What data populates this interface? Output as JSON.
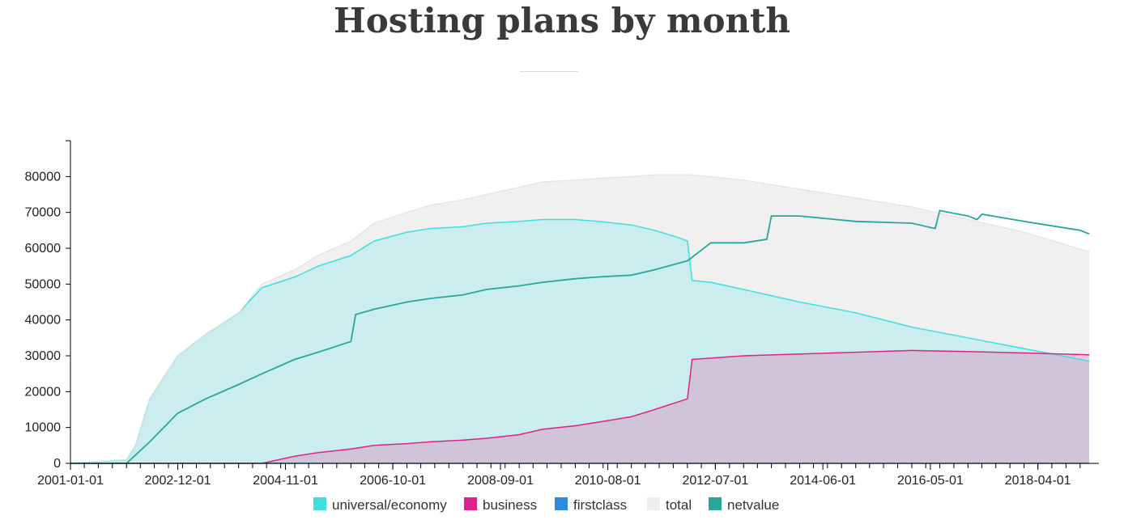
{
  "page": {
    "title": "Hosting plans by month"
  },
  "chart_data": {
    "type": "area",
    "title": "Hosting plans by month",
    "xlabel": "",
    "ylabel": "",
    "x_range": [
      "2001-01-01",
      "2019-03-01"
    ],
    "ylim": [
      0,
      90000
    ],
    "y_ticks": [
      0,
      10000,
      20000,
      30000,
      40000,
      50000,
      60000,
      70000,
      80000
    ],
    "x_tick_labels": [
      "2001-01-01",
      "2002-12-01",
      "2004-11-01",
      "2006-10-01",
      "2008-09-01",
      "2010-08-01",
      "2012-07-01",
      "2014-06-01",
      "2016-05-01",
      "2018-04-01"
    ],
    "legend_position": "bottom",
    "grid": false,
    "colors": {
      "universal/economy": "#3ddfdf",
      "business": "#e0218a",
      "firstclass": "#2a8be0",
      "total": "#eeeeee",
      "netvalue": "#27a89a"
    },
    "series": [
      {
        "name": "universal/economy",
        "x": [
          "2001-01-01",
          "2002-01-01",
          "2002-03-01",
          "2002-06-01",
          "2002-12-01",
          "2003-06-01",
          "2004-01-01",
          "2004-06-01",
          "2005-01-01",
          "2005-06-01",
          "2006-01-01",
          "2006-06-01",
          "2007-01-01",
          "2007-06-01",
          "2008-01-01",
          "2008-06-01",
          "2009-01-01",
          "2009-06-01",
          "2010-01-01",
          "2010-06-01",
          "2011-01-01",
          "2011-06-01",
          "2011-11-01",
          "2012-01-01",
          "2012-02-01",
          "2012-06-01",
          "2013-01-01",
          "2014-01-01",
          "2015-01-01",
          "2016-01-01",
          "2017-01-01",
          "2018-01-01",
          "2019-01-01",
          "2019-03-01"
        ],
        "values": [
          0,
          1000,
          5000,
          18000,
          30000,
          36000,
          42000,
          49000,
          52000,
          55000,
          58000,
          62000,
          64500,
          65500,
          66000,
          67000,
          67500,
          68000,
          68000,
          67500,
          66500,
          65000,
          63000,
          62000,
          51000,
          50500,
          48500,
          45000,
          42000,
          38000,
          35000,
          32000,
          29000,
          28500
        ]
      },
      {
        "name": "business",
        "x": [
          "2001-01-01",
          "2004-06-01",
          "2005-01-01",
          "2005-06-01",
          "2006-01-01",
          "2006-06-01",
          "2007-01-01",
          "2007-06-01",
          "2008-01-01",
          "2008-06-01",
          "2009-01-01",
          "2009-06-01",
          "2010-01-01",
          "2010-06-01",
          "2011-01-01",
          "2011-06-01",
          "2012-01-01",
          "2012-02-01",
          "2013-01-01",
          "2014-01-01",
          "2015-01-01",
          "2016-01-01",
          "2017-01-01",
          "2018-01-01",
          "2019-03-01"
        ],
        "values": [
          0,
          0,
          2000,
          3000,
          4000,
          5000,
          5500,
          6000,
          6500,
          7000,
          8000,
          9500,
          10500,
          11500,
          13000,
          15000,
          18000,
          29000,
          30000,
          30500,
          31000,
          31500,
          31200,
          30800,
          30300
        ]
      },
      {
        "name": "firstclass",
        "x": [
          "2001-01-01",
          "2019-03-01"
        ],
        "values": [
          0,
          0
        ]
      },
      {
        "name": "total",
        "x": [
          "2001-01-01",
          "2002-01-01",
          "2002-03-01",
          "2002-06-01",
          "2002-12-01",
          "2003-06-01",
          "2004-01-01",
          "2004-06-01",
          "2005-01-01",
          "2005-06-01",
          "2006-01-01",
          "2006-06-01",
          "2007-01-01",
          "2007-06-01",
          "2008-01-01",
          "2008-06-01",
          "2009-01-01",
          "2009-06-01",
          "2010-01-01",
          "2010-06-01",
          "2011-01-01",
          "2011-06-01",
          "2012-01-01",
          "2012-06-01",
          "2013-01-01",
          "2014-01-01",
          "2015-01-01",
          "2016-01-01",
          "2017-01-01",
          "2018-01-01",
          "2019-03-01"
        ],
        "values": [
          0,
          1000,
          5000,
          18000,
          30000,
          36000,
          42000,
          50000,
          54000,
          58000,
          62000,
          67000,
          70000,
          72000,
          73500,
          75000,
          77000,
          78500,
          79000,
          79500,
          80000,
          80500,
          80500,
          80000,
          79000,
          76500,
          74000,
          71500,
          68000,
          64500,
          59000
        ]
      },
      {
        "name": "netvalue",
        "x": [
          "2001-01-01",
          "2002-01-01",
          "2002-06-01",
          "2002-12-01",
          "2003-06-01",
          "2004-01-01",
          "2004-06-01",
          "2005-01-01",
          "2005-06-01",
          "2006-01-01",
          "2006-02-01",
          "2006-06-01",
          "2007-01-01",
          "2007-06-01",
          "2008-01-01",
          "2008-06-01",
          "2009-01-01",
          "2009-06-01",
          "2010-01-01",
          "2010-06-01",
          "2011-01-01",
          "2011-06-01",
          "2012-01-01",
          "2012-02-01",
          "2012-06-01",
          "2013-01-01",
          "2013-06-01",
          "2013-07-01",
          "2014-01-01",
          "2015-01-01",
          "2016-01-01",
          "2016-06-01",
          "2016-07-01",
          "2017-01-01",
          "2017-03-01",
          "2017-04-01",
          "2018-01-01",
          "2019-01-01",
          "2019-03-01"
        ],
        "values": [
          0,
          0,
          6000,
          14000,
          18000,
          22000,
          25000,
          29000,
          31000,
          34000,
          41500,
          43000,
          45000,
          46000,
          47000,
          48500,
          49500,
          50500,
          51500,
          52000,
          52500,
          54000,
          56500,
          57500,
          61500,
          61500,
          62500,
          69000,
          69000,
          67500,
          67000,
          65500,
          70500,
          69000,
          68000,
          69500,
          67500,
          65000,
          64000
        ]
      }
    ]
  }
}
